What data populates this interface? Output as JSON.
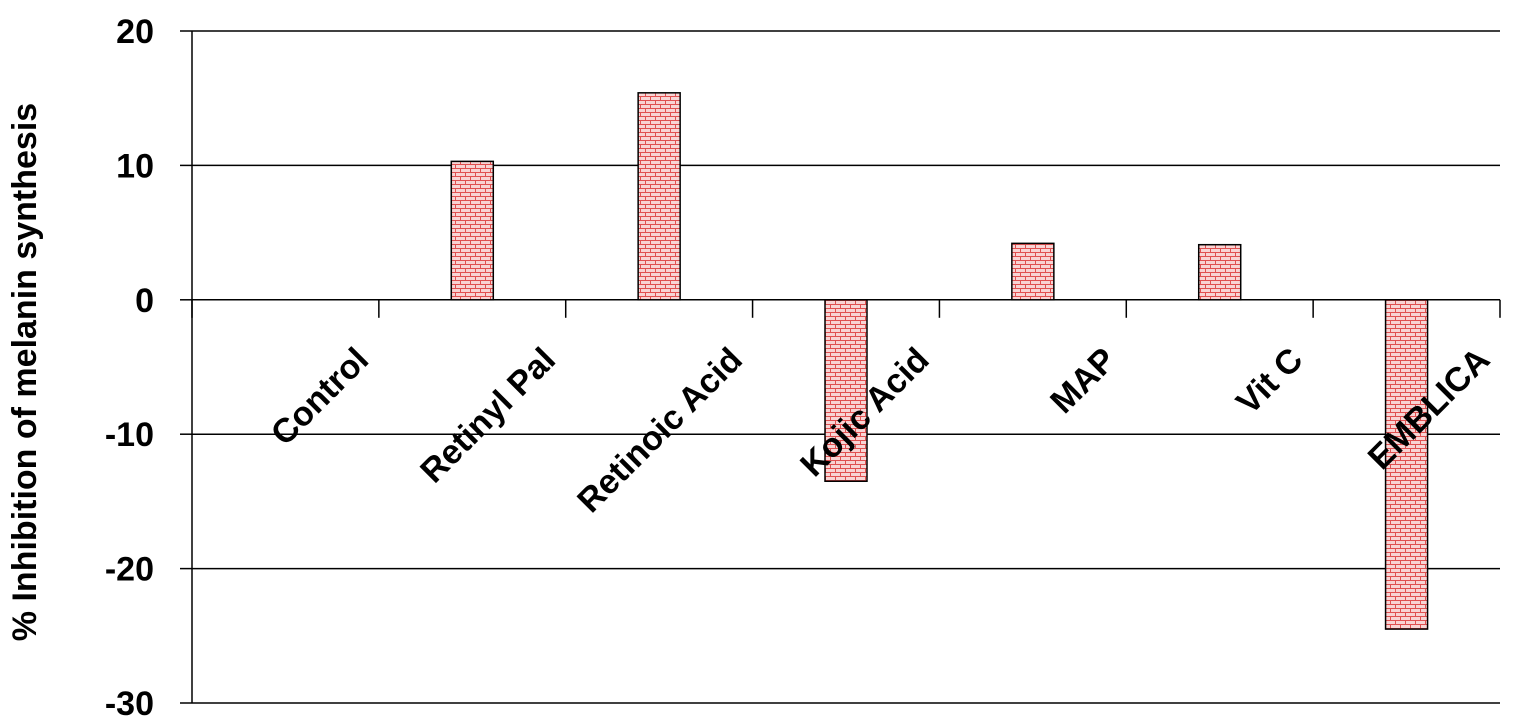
{
  "chart_data": {
    "type": "bar",
    "title": "",
    "xlabel": "",
    "ylabel": "% Inhibition of melanin synthesis",
    "categories": [
      "Control",
      "Retinyl Pal",
      "Retinoic Acid",
      "Kojic Acid",
      "MAP",
      "Vit C",
      "EMBLICA"
    ],
    "values": [
      0,
      10.3,
      15.4,
      -13.5,
      4.2,
      4.1,
      -24.5
    ],
    "ylim": [
      -30,
      20
    ],
    "yticks": [
      "20",
      "10",
      "0",
      "-10",
      "-20",
      "-30"
    ],
    "grid": true,
    "legend": "none",
    "bar_fill": "#f6c8c8",
    "bar_pattern_color": "#e05050",
    "bar_stroke": "#000000"
  }
}
